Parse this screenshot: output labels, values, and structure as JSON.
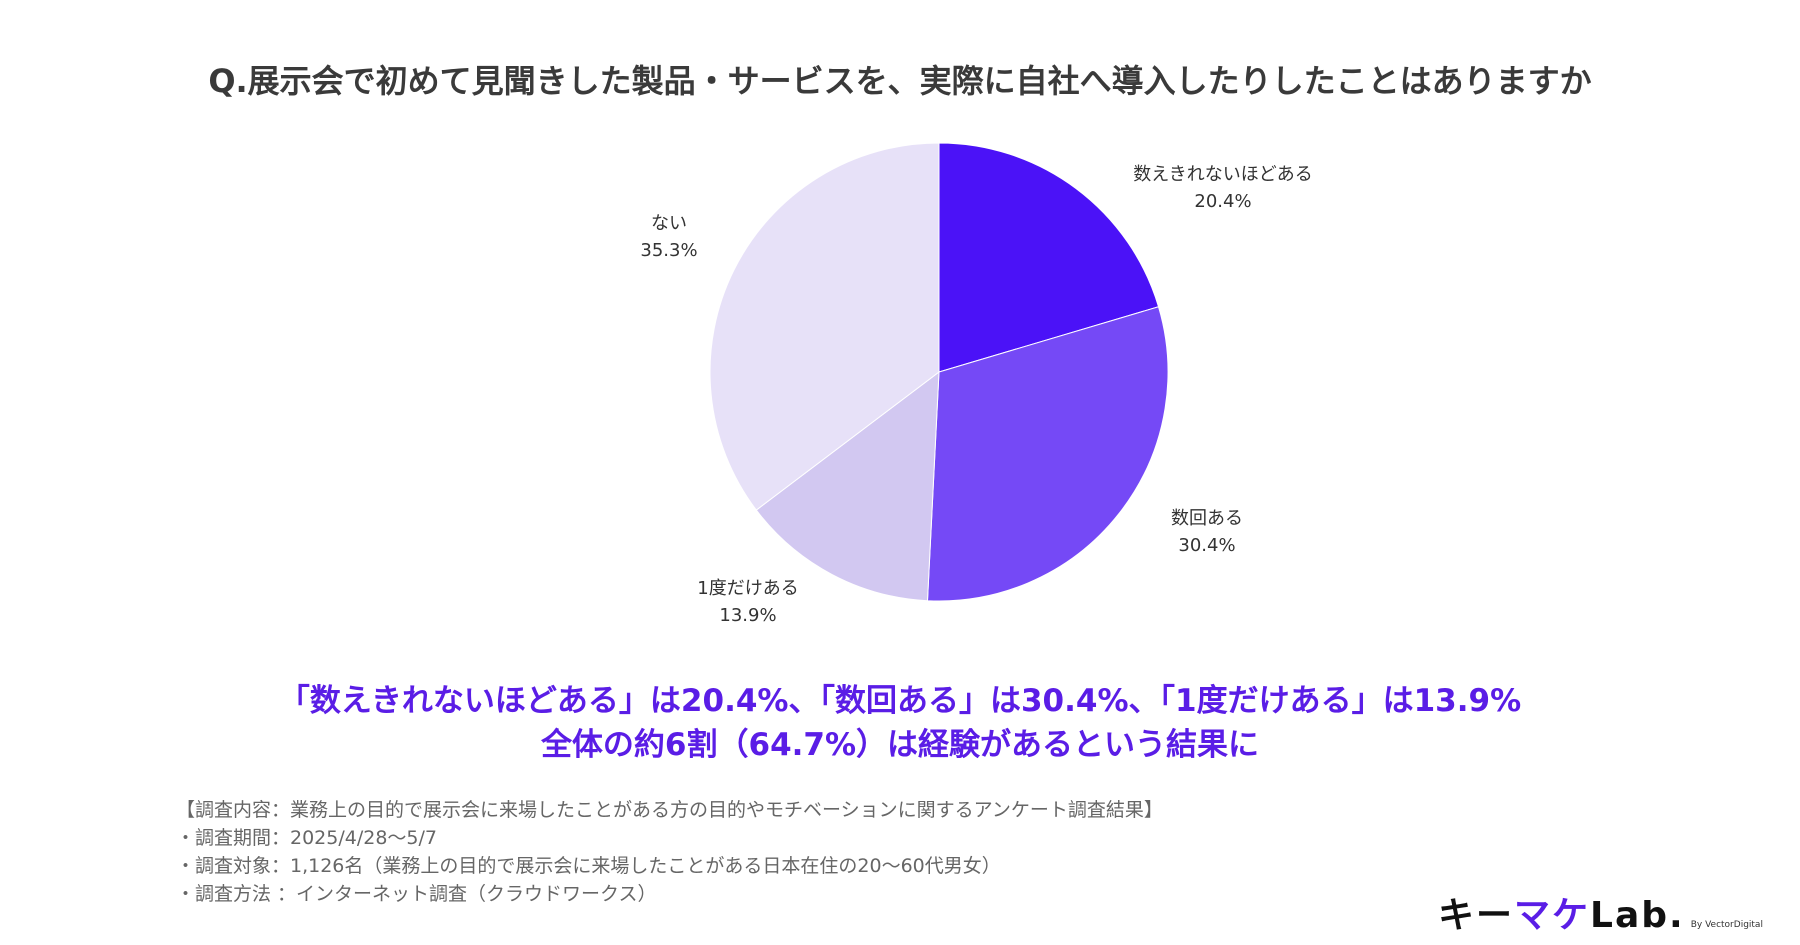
{
  "chart_data": {
    "type": "pie",
    "title": "Q.展示会で初めて見聞きした製品・サービスを、実際に自社へ導入したりしたことはありますか",
    "slices": [
      {
        "label": "数えきれないほどある",
        "value": 20.4,
        "display": "20.4%",
        "color": "#4b12f7"
      },
      {
        "label": "数回ある",
        "value": 30.4,
        "display": "30.4%",
        "color": "#7549f6"
      },
      {
        "label": "1度だけある",
        "value": 13.9,
        "display": "13.9%",
        "color": "#d2c8f1"
      },
      {
        "label": "ない",
        "value": 35.3,
        "display": "35.3%",
        "color": "#e7e1f8"
      }
    ],
    "start": "top",
    "direction": "clockwise"
  },
  "highlight": {
    "line1": "「数えきれないほどある」は20.4%、「数回ある」は30.4%、「1度だけある」は13.9%",
    "line2": "全体の約6割（64.7%）は経験があるという結果に"
  },
  "footer": [
    "【調査内容：業務上の目的で展示会に来場したことがある方の目的やモチベーションに関するアンケート調査結果】",
    "・調査期間：2025/4/28〜5/7",
    "・調査対象：1,126名（業務上の目的で展示会に来場したことがある日本在住の20〜60代男女）",
    "・調査方法 ：インターネット調査（クラウドワークス）"
  ],
  "logo": {
    "part1": "キー",
    "part2": "マケ",
    "part3": "Lab.",
    "sub": "By VectorDigital"
  }
}
